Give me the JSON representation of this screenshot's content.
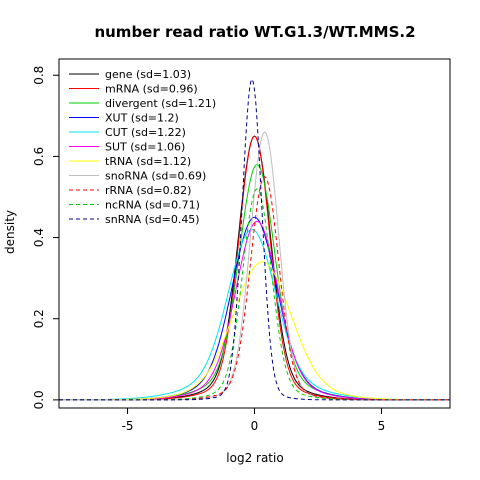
{
  "chart_data": {
    "type": "line",
    "title": "number read ratio WT.G1.3/WT.MMS.2",
    "xlabel": "log2 ratio",
    "ylabel": "density",
    "xlim": [
      -7.7,
      7.7
    ],
    "ylim": [
      -0.02,
      0.84
    ],
    "x_ticks": [
      -5,
      0,
      5
    ],
    "y_ticks": [
      0.0,
      0.2,
      0.4,
      0.6,
      0.8
    ],
    "x_tick_labels": [
      "-5",
      "0",
      "5"
    ],
    "y_tick_labels": [
      "0.0",
      "0.2",
      "0.4",
      "0.6",
      "0.8"
    ],
    "grid": false,
    "legend_position": "top-left",
    "series": [
      {
        "name": "gene (sd=1.03)",
        "color": "#000000",
        "dash": "solid",
        "peak": 0.65,
        "center": 0.0,
        "sigma": 0.62,
        "tail": 0.05,
        "tail_sigma": 1.5
      },
      {
        "name": "mRNA (sd=0.96)",
        "color": "#ff0000",
        "dash": "solid",
        "peak": 0.65,
        "center": 0.0,
        "sigma": 0.6,
        "tail": 0.04,
        "tail_sigma": 1.5
      },
      {
        "name": "divergent (sd=1.21)",
        "color": "#00cd00",
        "dash": "solid",
        "peak": 0.58,
        "center": 0.1,
        "sigma": 0.68,
        "tail": 0.06,
        "tail_sigma": 1.7
      },
      {
        "name": "XUT (sd=1.2)",
        "color": "#0000ff",
        "dash": "solid",
        "peak": 0.45,
        "center": 0.0,
        "sigma": 0.85,
        "tail": 0.05,
        "tail_sigma": 1.8
      },
      {
        "name": "CUT (sd=1.22)",
        "color": "#00e5ee",
        "dash": "solid",
        "peak": 0.42,
        "center": -0.1,
        "sigma": 0.9,
        "tail": 0.06,
        "tail_sigma": 2.0
      },
      {
        "name": "SUT (sd=1.06)",
        "color": "#ff00ff",
        "dash": "solid",
        "peak": 0.44,
        "center": 0.1,
        "sigma": 0.8,
        "tail": 0.05,
        "tail_sigma": 1.7
      },
      {
        "name": "tRNA (sd=1.12)",
        "color": "#ffff00",
        "dash": "solid",
        "peak": 0.34,
        "center": 0.3,
        "sigma": 1.1,
        "tail": 0.04,
        "tail_sigma": 2.0
      },
      {
        "name": "snoRNA (sd=0.69)",
        "color": "#bebebe",
        "dash": "solid",
        "peak": 0.66,
        "center": 0.4,
        "sigma": 0.55,
        "tail": 0.03,
        "tail_sigma": 1.2
      },
      {
        "name": "rRNA (sd=0.82)",
        "color": "#ff0000",
        "dash": "dashed",
        "peak": 0.55,
        "center": 0.4,
        "sigma": 0.55,
        "tail": 0.03,
        "tail_sigma": 1.3
      },
      {
        "name": "ncRNA (sd=0.71)",
        "color": "#00cd00",
        "dash": "dashed",
        "peak": 0.52,
        "center": 0.1,
        "sigma": 0.55,
        "tail": 0.03,
        "tail_sigma": 1.3
      },
      {
        "name": "snRNA (sd=0.45)",
        "color": "#00008b",
        "dash": "dashed",
        "peak": 0.79,
        "center": -0.1,
        "sigma": 0.38,
        "tail": 0.02,
        "tail_sigma": 0.9
      }
    ]
  }
}
